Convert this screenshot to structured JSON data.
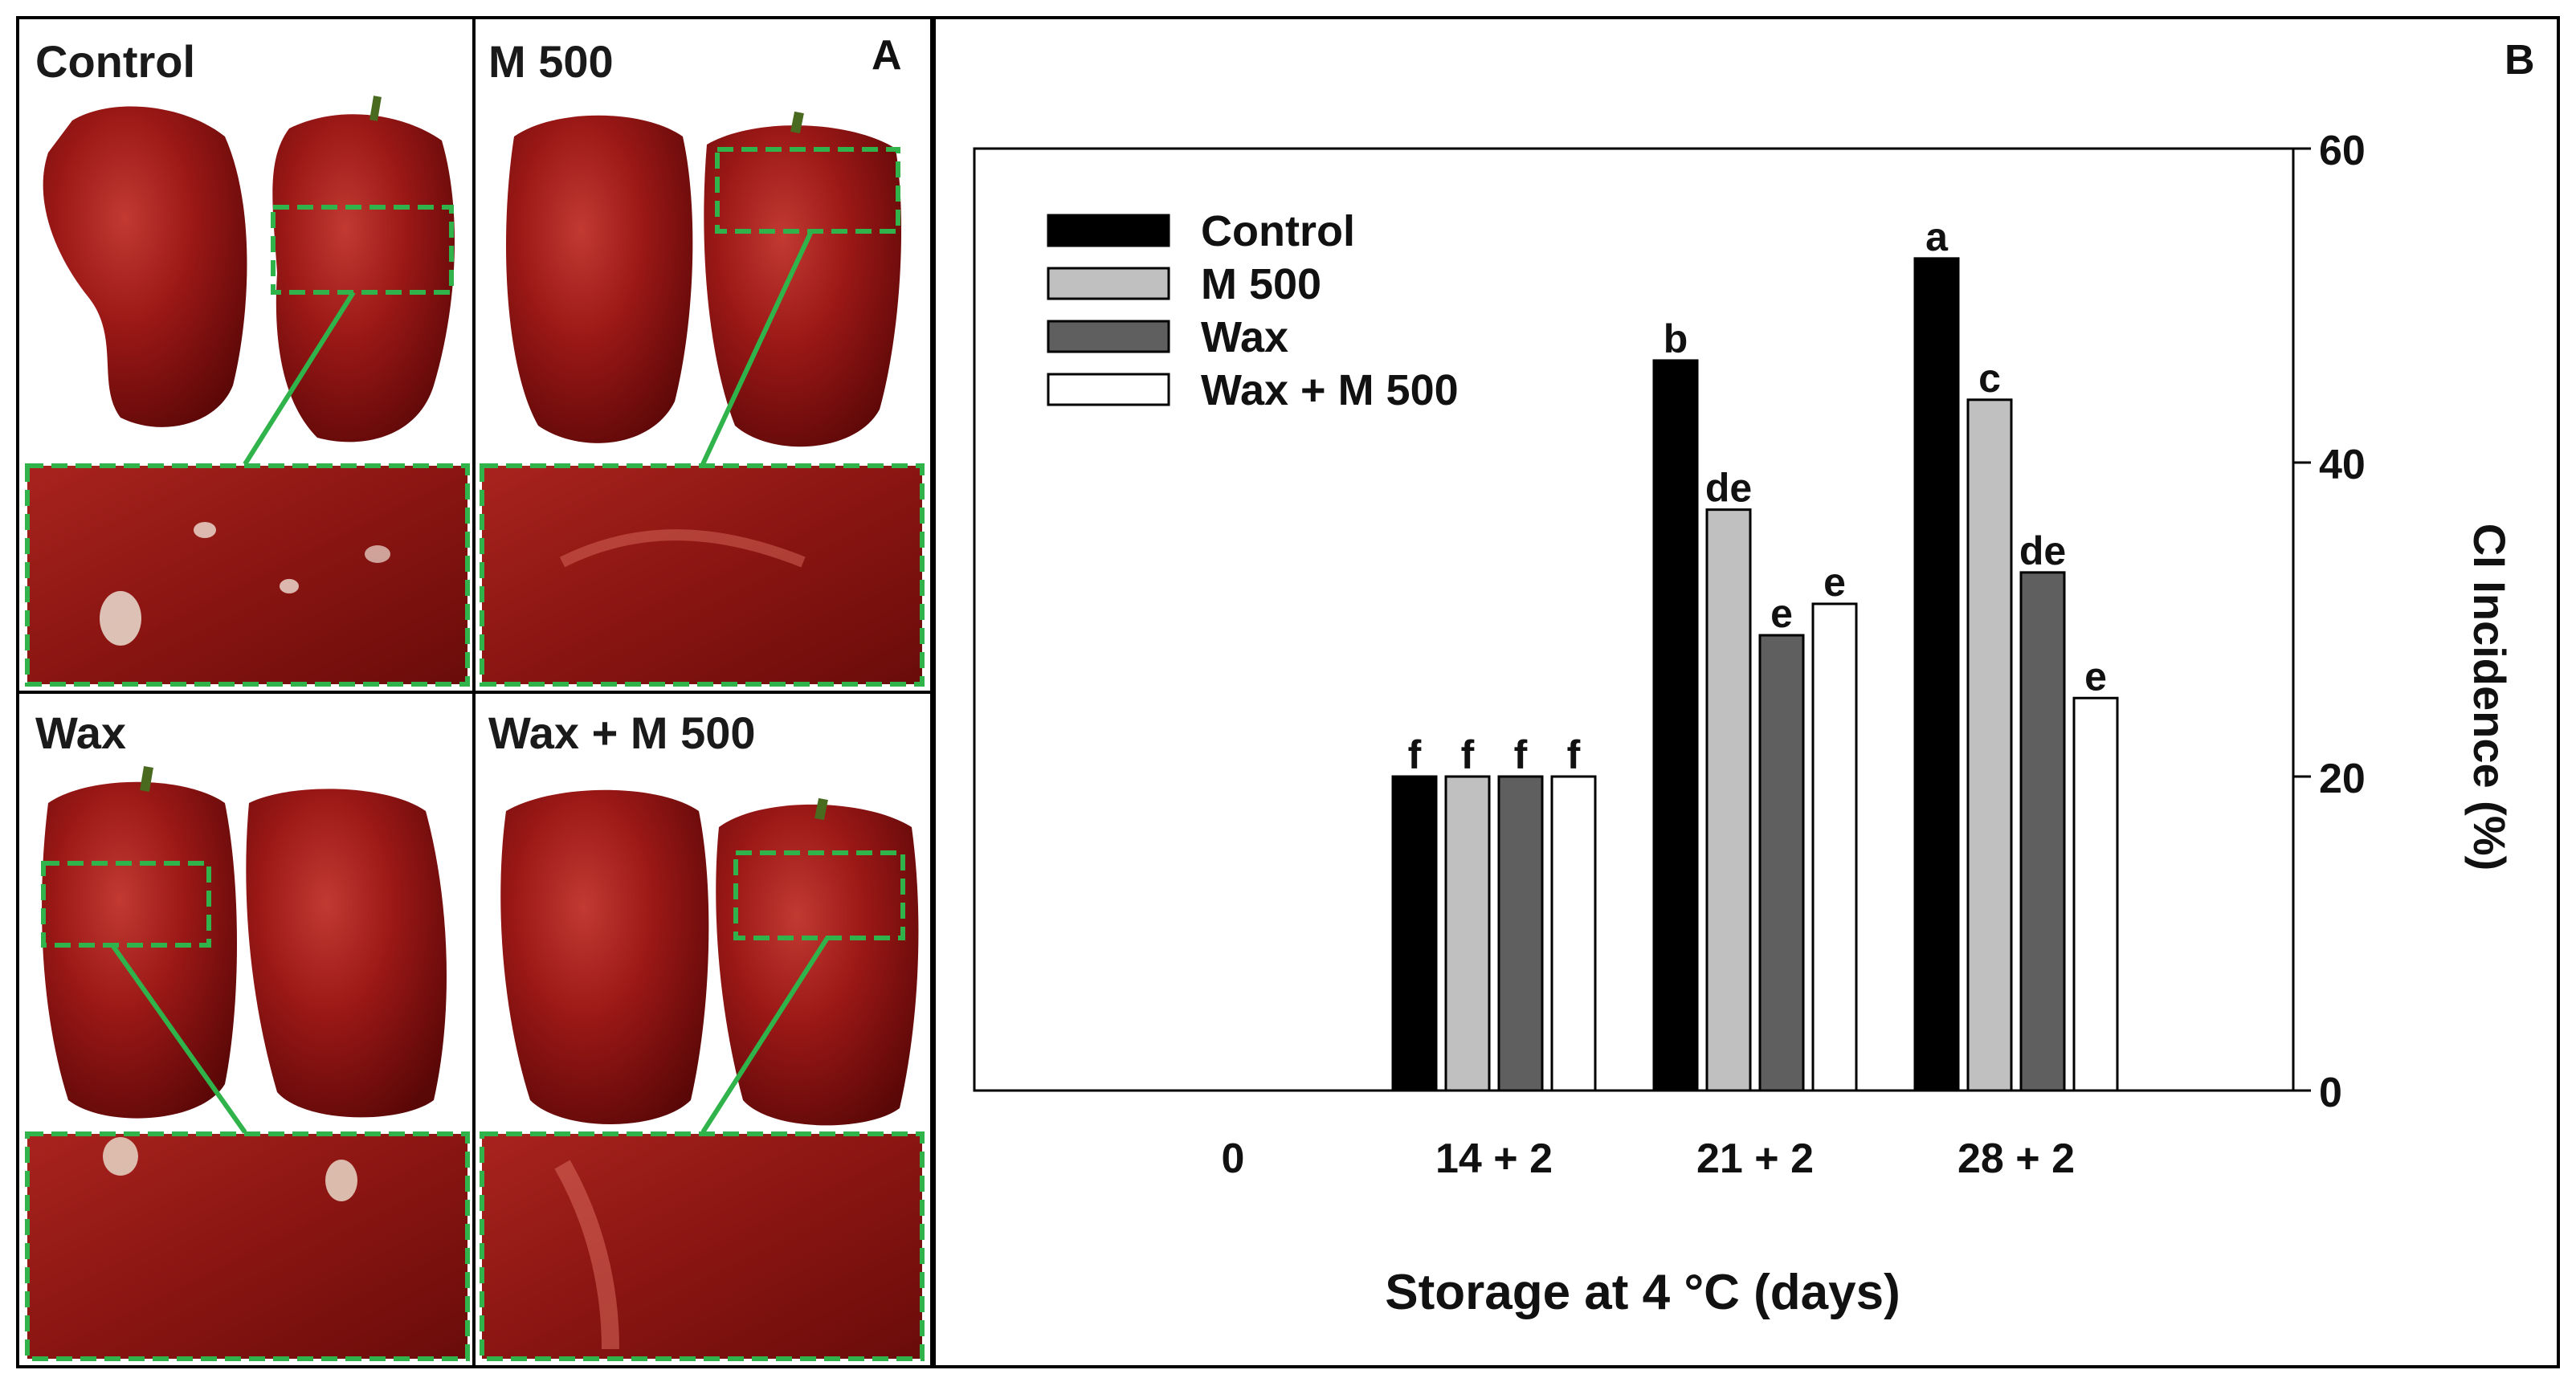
{
  "panel_a": {
    "label": "A",
    "photos": [
      {
        "title": "Control"
      },
      {
        "title": "M 500"
      },
      {
        "title": "Wax"
      },
      {
        "title": "Wax + M 500"
      }
    ]
  },
  "panel_b": {
    "label": "B"
  },
  "colors": {
    "control": "#000000",
    "m500": "#c0c0c0",
    "wax": "#5f5f5f",
    "wax_m500": "#ffffff",
    "zoom_box": "#2fb34a",
    "pepper_red": "#8e1414"
  },
  "chart_data": {
    "type": "bar",
    "categories": [
      "0",
      "14 + 2",
      "21 + 2",
      "28 + 2"
    ],
    "xlabel": "Storage at 4 °C (days)",
    "ylabel": "CI Incidence (%)",
    "ylim": [
      0,
      60
    ],
    "yticks": [
      "0",
      "20",
      "40",
      "60"
    ],
    "y_axis_side": "right",
    "legend_position": "top-left",
    "grid": false,
    "series": [
      {
        "name": "Control",
        "color": "#000000",
        "values": [
          0,
          20,
          46.5,
          53
        ],
        "letters": [
          "",
          "f",
          "b",
          "a"
        ]
      },
      {
        "name": "M 500",
        "color": "#c0c0c0",
        "values": [
          0,
          20,
          37,
          44
        ],
        "letters": [
          "",
          "f",
          "de",
          "c"
        ]
      },
      {
        "name": "Wax",
        "color": "#5f5f5f",
        "values": [
          0,
          20,
          29,
          33
        ],
        "letters": [
          "",
          "f",
          "e",
          "de"
        ]
      },
      {
        "name": "Wax + M 500",
        "color": "#ffffff",
        "values": [
          0,
          20,
          31,
          25
        ],
        "letters": [
          "",
          "f",
          "e",
          "e"
        ]
      }
    ]
  }
}
